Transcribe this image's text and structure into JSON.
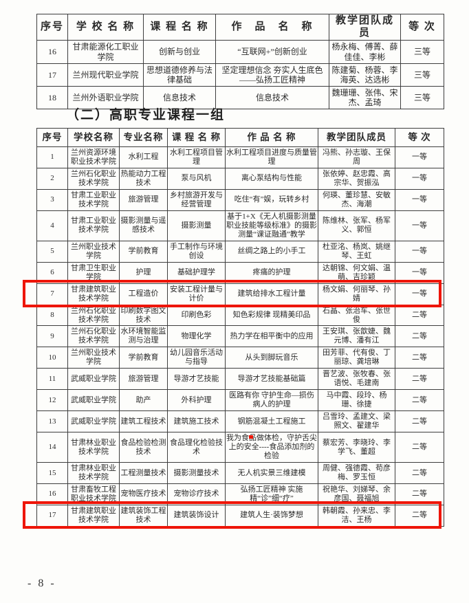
{
  "page": {
    "number_label": "- 8 -"
  },
  "colors": {
    "highlight_red": "#ee1507",
    "text": "#2b2b2b",
    "border": "#3d3d3d"
  },
  "section_heading": "（二）高职专业课程一组",
  "table1": {
    "headers": [
      "序号",
      "学 校 名 称",
      "课 程 名 称",
      "作　品　名　称",
      "教学团队成员",
      "等 次"
    ],
    "rows": [
      [
        "16",
        "甘肃能源化工职业学院",
        "创新与创业",
        "“互联网+”创新创业",
        "杨永梅、傅菁、薛佳佳、李彬",
        "三等"
      ],
      [
        "17",
        "兰州现代职业学院",
        "思想道德修养与法律基础",
        "坚定理想信念 夯实人生底色——弘扬工匠精神",
        "陈建菊、杨蓉、李海英、达选彬",
        "三等"
      ],
      [
        "18",
        "兰州外语职业学院",
        "信息技术",
        "信息技术",
        "魏珊珊、张伟、宋杰、孟琦",
        "三等"
      ]
    ]
  },
  "table2": {
    "headers": [
      "序号",
      "学校名称",
      "专业名称",
      "课 程 名 称",
      "作 品 名 称",
      "教学团队成员",
      "等 次"
    ],
    "rows": [
      [
        "1",
        "兰州资源环境职业技术学院",
        "水利工程",
        "水利工程项目管理",
        "水利工程项目进度与质量管理",
        "冯熊、孙志璇、王保周",
        "一等"
      ],
      [
        "2",
        "兰州石化职业技术学院",
        "热能动力工程技术",
        "泵与风机",
        "离心泵结构与性能",
        "张依婷、赵忠霞、高宗华、贺振泓",
        "一等"
      ],
      [
        "3",
        "甘肃工业职业技术学院",
        "旅游管理",
        "乡村旅游开发与经营管理",
        "吃住“有”娱，玩转乡村",
        "何瑛、董珍慧、安敏杰、海潮",
        "一等"
      ],
      [
        "4",
        "甘肃工业职业技术学院",
        "摄影测量与遥感技术",
        "摄影测量",
        "基于1+X《无人机摄影测量职业技能等级标准》的摄影测量“课证融通”教学",
        "陈维林、张军、杨军义、郭恒",
        "一等"
      ],
      [
        "5",
        "兰州职业技术学院",
        "学前教育",
        "手工制作与环境创设",
        "丝绸之路上的小手工",
        "杜亚洺、杨岚、姚继琴、王虹",
        "一等"
      ],
      [
        "6",
        "甘肃卫生职业学院",
        "护理",
        "基础护理学",
        "疼痛的护理",
        "达朝锦、何文娟、温萌、吉珍颖",
        "一等"
      ],
      [
        "7",
        "甘肃建筑职业技术学院",
        "工程造价",
        "安装工程计量与计价",
        "建筑给排水工程计量",
        "杨文娟、何丽琴、孙婧",
        "一等"
      ],
      [
        "8",
        "兰州石化职业技术学院",
        "印刷数字图文技术",
        "印刷色彩",
        "知色彩规律 现精美印品",
        "石晶、张治车、张世俊",
        "二等"
      ],
      [
        "9",
        "兰州石化职业技术学院",
        "水环境智能监测与治理",
        "物理化学",
        "热力学在相平衡中的应用",
        "王安琪、张歆婕、魏元博、潘有江",
        "二等"
      ],
      [
        "10",
        "兰州职业技术学院",
        "学前教育",
        "幼儿园音乐活动与指导",
        "从头到脚玩音乐",
        "田芳菲、代有俊、丁丽琼、龚培琳",
        "二等"
      ],
      [
        "11",
        "武威职业学院",
        "旅游管理",
        "导游才艺技能",
        "导游才艺技能基础篇",
        "晋艺波、张牧春、张语悦、毛建南",
        "二等"
      ],
      [
        "12",
        "武威职业学院",
        "助产",
        "外科护理",
        "医路有你 守护生命—损伤病人的护理",
        "马中霞、段玲、杨珊、徐捷",
        "二等"
      ],
      [
        "13",
        "武威职业学院",
        "建筑工程技术",
        "建筑施工技术",
        "钢筋混凝土工程施工",
        "吕雪玲、孟建文、梁照文、翟建华",
        "二等"
      ],
      [
        "14",
        "甘肃林业职业技术学院",
        "食品检验检测技术",
        "食品理化检验技术",
        "我为食品做体检，守护舌尖上的安全----食品添加剂的检验",
        "蔡宏芳、李晓玲、李学飞、董超",
        "二等"
      ],
      [
        "15",
        "甘肃林业职业技术学院",
        "工程测量技术",
        "摄影测量技术",
        "无人机实景三维建模",
        "周健、强德霞、苟彦梅、罗玉恒",
        "二等"
      ],
      [
        "16",
        "甘肃畜牧工程职业技术学院",
        "宠物医疗技术",
        "宠物诊疗技术",
        "弘扬工匠精神 实施精“诊”细“疗”",
        "祝艳华、刘娣琴、余彦国、聂福旭",
        "二等"
      ],
      [
        "17",
        "甘肃建筑职业技术学院",
        "建筑装饰工程技术",
        "建筑装饰设计",
        "建筑人生·装饰梦想",
        "韩朝霞、孙来忠、李洁、王杨",
        "二等"
      ]
    ],
    "highlighted_rows": [
      "7",
      "17"
    ]
  }
}
